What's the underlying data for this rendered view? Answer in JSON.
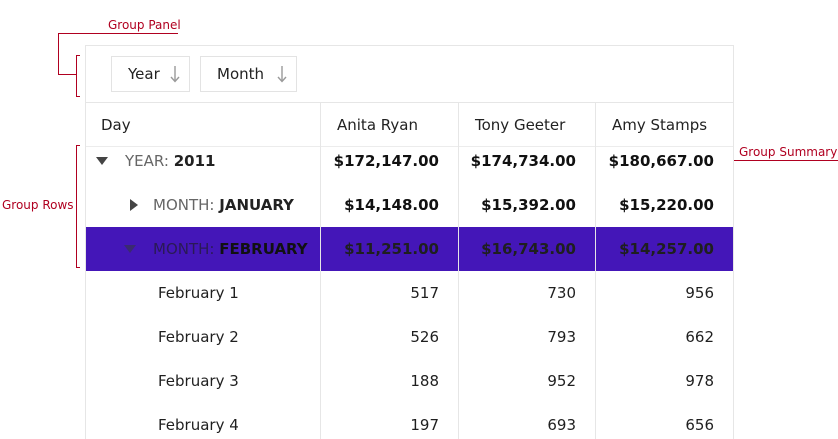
{
  "annotations": {
    "group_panel": "Group Panel",
    "group_summary": "Group Summary",
    "group_rows": "Group Rows"
  },
  "group_panel": {
    "chips": [
      {
        "label": "Year",
        "icon": "arrow-down-icon"
      },
      {
        "label": "Month",
        "icon": "arrow-down-icon"
      }
    ]
  },
  "columns": [
    "Day",
    "Anita Ryan",
    "Tony Geeter",
    "Amy Stamps"
  ],
  "group_year": {
    "label": "YEAR:",
    "value": "2011",
    "values": [
      "$172,147.00",
      "$174,734.00",
      "$180,667.00"
    ]
  },
  "group_january": {
    "label": "MONTH:",
    "value": "JANUARY",
    "values": [
      "$14,148.00",
      "$15,392.00",
      "$15,220.00"
    ]
  },
  "group_february": {
    "label": "MONTH:",
    "value": "FEBRUARY",
    "values": [
      "$11,251.00",
      "$16,743.00",
      "$14,257.00"
    ]
  },
  "rows": [
    {
      "day": "February 1",
      "values": [
        "517",
        "730",
        "956"
      ]
    },
    {
      "day": "February 2",
      "values": [
        "526",
        "793",
        "662"
      ]
    },
    {
      "day": "February 3",
      "values": [
        "188",
        "952",
        "978"
      ]
    },
    {
      "day": "February 4",
      "values": [
        "197",
        "693",
        "656"
      ]
    }
  ],
  "colors": {
    "selected_row": "#4416b8",
    "annotation": "#b00020"
  }
}
